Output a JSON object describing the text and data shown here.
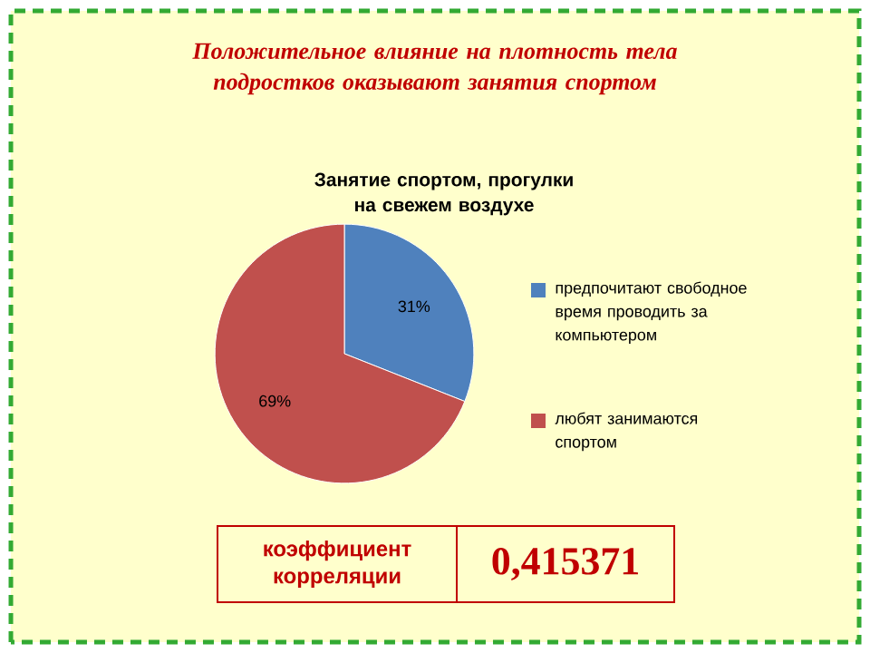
{
  "chart_data": {
    "type": "pie",
    "title": "Положительное влияние на плотность тела подростков оказывают занятия спортом",
    "subtitle": "Занятие спортом, прогулки на свежем воздухе",
    "categories": [
      "предпочитают свободное время проводить за компьютером",
      "любят занимаются спортом"
    ],
    "values": [
      31,
      69
    ],
    "value_labels": [
      "31%",
      "69%"
    ],
    "colors": [
      "#4f81bd",
      "#c0504d"
    ],
    "legend": "right",
    "annotations": [
      "коэффициент корреляции",
      "0,415371"
    ]
  }
}
